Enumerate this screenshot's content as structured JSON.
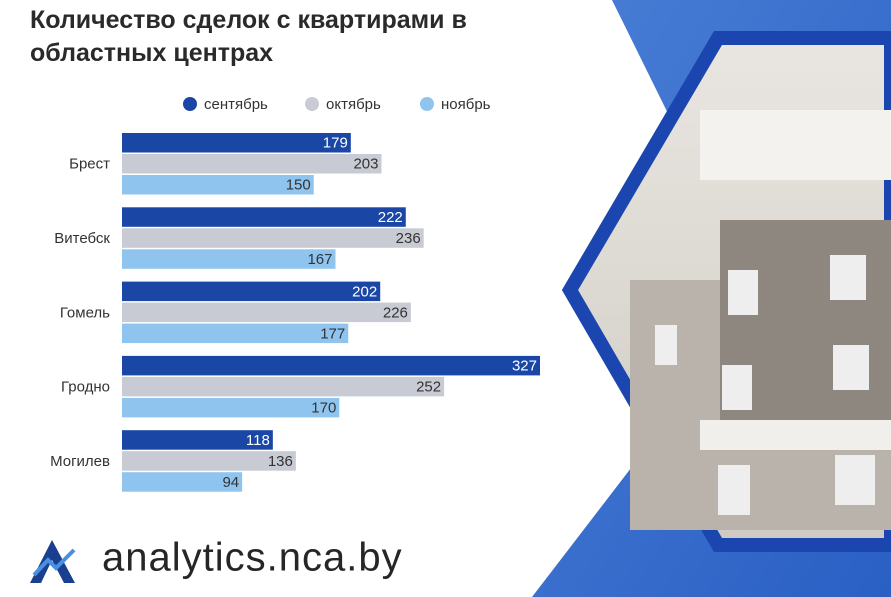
{
  "chart_data": {
    "type": "bar",
    "orientation": "horizontal",
    "title": "Количество сделок с квартирами в областных центрах",
    "categories": [
      "Брест",
      "Витебск",
      "Гомель",
      "Гродно",
      "Могилев"
    ],
    "series": [
      {
        "name": "сентябрь",
        "color": "#1a46a6",
        "values": [
          179,
          222,
          202,
          327,
          118
        ]
      },
      {
        "name": "октябрь",
        "color": "#c8cbd3",
        "values": [
          203,
          236,
          226,
          252,
          136
        ]
      },
      {
        "name": "ноябрь",
        "color": "#8fc4ee",
        "values": [
          150,
          167,
          177,
          170,
          94
        ]
      }
    ],
    "value_labels_shown": true
  },
  "logo_text": "analytics.nca.by"
}
